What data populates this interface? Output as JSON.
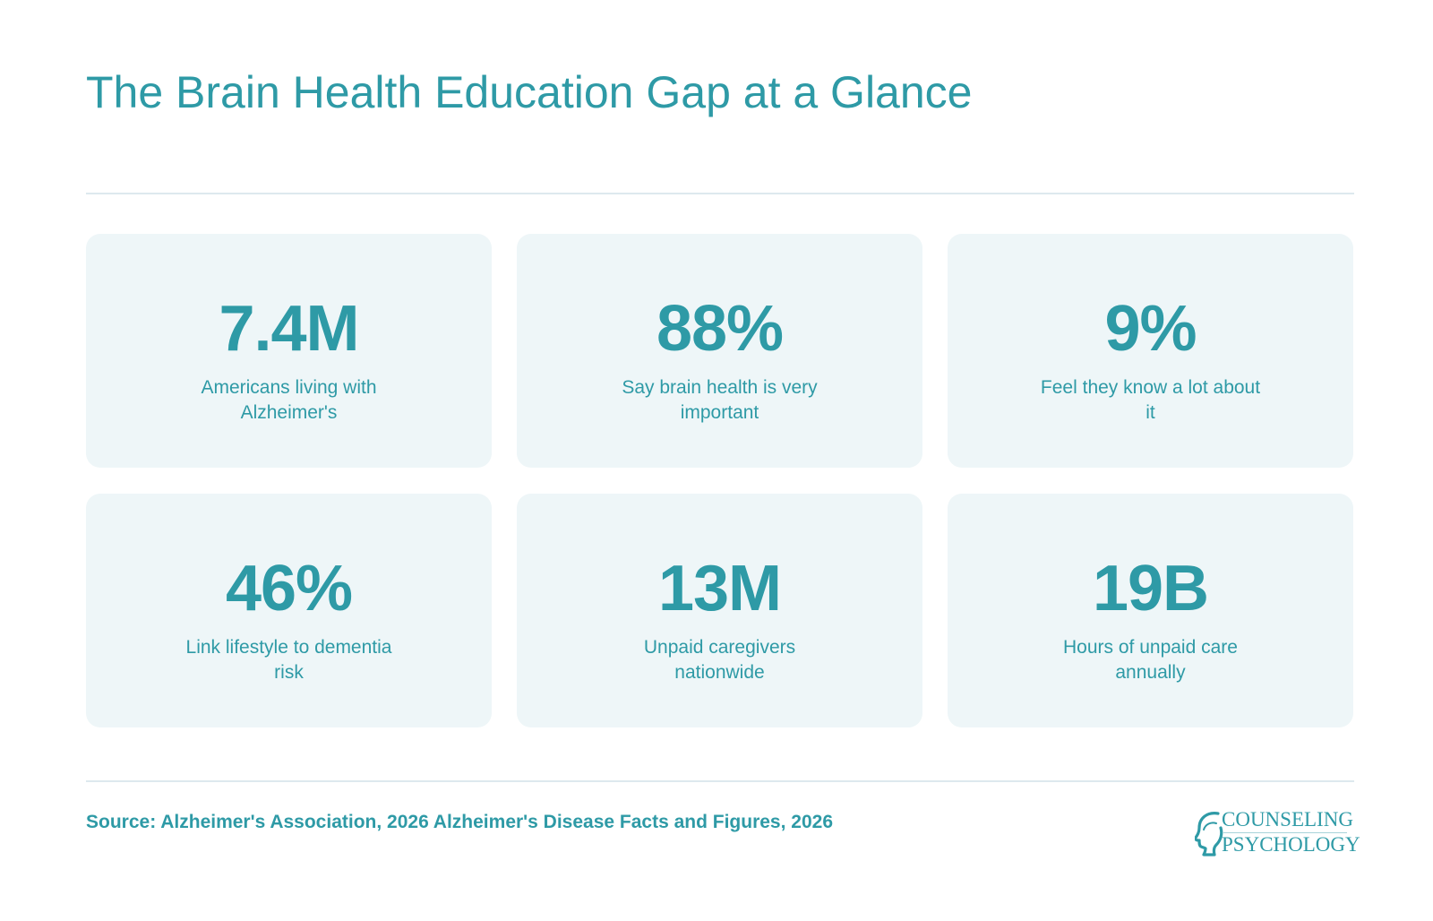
{
  "title": "The Brain Health Education Gap at a Glance",
  "stats": [
    {
      "value": "7.4M",
      "label": "Americans living with Alzheimer's"
    },
    {
      "value": "88%",
      "label": "Say brain health is very important"
    },
    {
      "value": "9%",
      "label": "Feel they know a lot about it"
    },
    {
      "value": "46%",
      "label": "Link lifestyle to dementia risk"
    },
    {
      "value": "13M",
      "label": "Unpaid caregivers nationwide"
    },
    {
      "value": "19B",
      "label": "Hours of unpaid care annually"
    }
  ],
  "source": "Source: Alzheimer's Association, 2026 Alzheimer's Disease Facts and Figures, 2026",
  "logo": {
    "line1": "COUNSELING",
    "line2": "PSYCHOLOGY",
    "icon": "head-profile-icon"
  },
  "colors": {
    "accent": "#2e9aa6",
    "card_background": "#eef6f8",
    "divider": "#dde9ee"
  }
}
